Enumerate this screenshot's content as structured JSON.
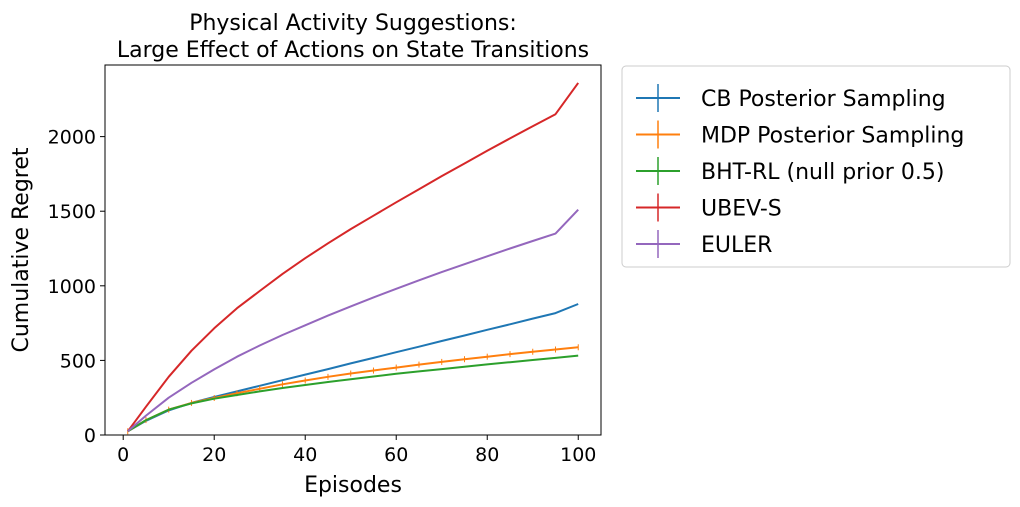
{
  "chart_data": {
    "type": "line",
    "title_lines": [
      "Physical Activity Suggestions:",
      "Large Effect of Actions on State Transitions"
    ],
    "xlabel": "Episodes",
    "ylabel": "Cumulative Regret",
    "xlim": [
      -4,
      105
    ],
    "ylim": [
      0,
      2480
    ],
    "xticks": [
      0,
      20,
      40,
      60,
      80,
      100
    ],
    "yticks": [
      0,
      500,
      1000,
      1500,
      2000
    ],
    "xtick_labels": [
      "0",
      "20",
      "40",
      "60",
      "80",
      "100"
    ],
    "ytick_labels": [
      "0",
      "500",
      "1000",
      "1500",
      "2000"
    ],
    "legend_position": "outside-right",
    "x": [
      1,
      5,
      10,
      15,
      20,
      25,
      30,
      35,
      40,
      45,
      50,
      55,
      60,
      65,
      70,
      75,
      80,
      85,
      90,
      95,
      100
    ],
    "series": [
      {
        "name": "CB Posterior Sampling",
        "color": "#1f77b4",
        "values": [
          25,
          95,
          165,
          215,
          255,
          292,
          330,
          367,
          405,
          442,
          480,
          517,
          555,
          592,
          630,
          667,
          705,
          742,
          780,
          817,
          878
        ]
      },
      {
        "name": "MDP Posterior Sampling",
        "color": "#ff7f0e",
        "error_bars": true,
        "values": [
          25,
          100,
          170,
          215,
          248,
          280,
          310,
          340,
          365,
          390,
          412,
          432,
          452,
          472,
          490,
          508,
          525,
          542,
          558,
          573,
          588
        ]
      },
      {
        "name": "BHT-RL (null prior 0.5)",
        "color": "#2ca02c",
        "values": [
          25,
          100,
          170,
          212,
          243,
          268,
          292,
          315,
          335,
          355,
          374,
          392,
          410,
          426,
          442,
          458,
          473,
          488,
          503,
          517,
          532
        ]
      },
      {
        "name": "UBEV-S",
        "color": "#d62728",
        "values": [
          25,
          190,
          390,
          565,
          715,
          850,
          965,
          1080,
          1185,
          1285,
          1380,
          1470,
          1560,
          1647,
          1735,
          1820,
          1905,
          1988,
          2070,
          2150,
          2360
        ]
      },
      {
        "name": "EULER",
        "color": "#9467bd",
        "values": [
          25,
          130,
          250,
          350,
          440,
          525,
          600,
          670,
          735,
          800,
          862,
          922,
          980,
          1037,
          1092,
          1145,
          1198,
          1250,
          1300,
          1350,
          1510
        ]
      }
    ]
  }
}
